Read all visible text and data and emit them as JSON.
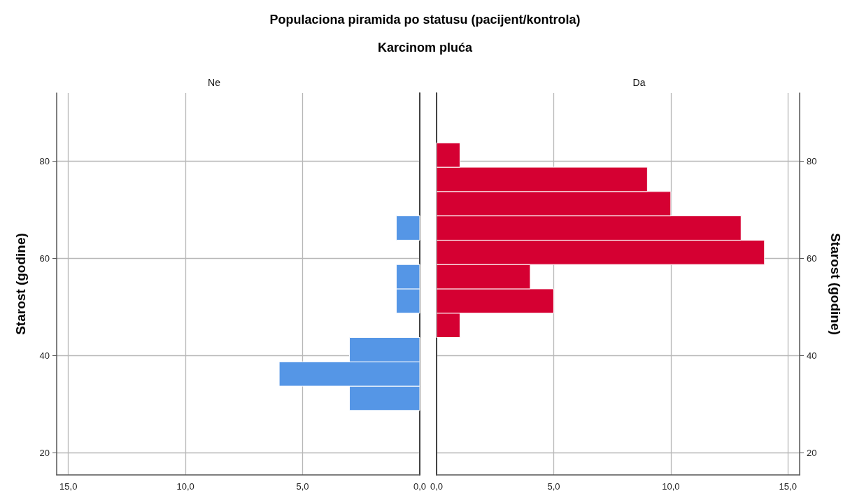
{
  "chart_data": [
    {
      "type": "other",
      "title": "Populaciona piramida po statusu (pacijent/kontrola)",
      "subtitle": "Karcinom pluća"
    },
    {
      "type": "histogram",
      "orientation": "horizontal",
      "title": "Ne",
      "color": "#5596e6",
      "bins": [
        28.75,
        33.75,
        38.75,
        43.75,
        48.75,
        53.75,
        58.75,
        63.75,
        68.75,
        73.75,
        78.75,
        83.75
      ],
      "values": [
        3,
        6,
        3,
        0,
        1,
        1,
        0,
        1,
        0,
        0,
        0
      ],
      "xlim": [
        15.5,
        0
      ],
      "xticks": [
        {
          "value": 15,
          "label": "15,0"
        },
        {
          "value": 10,
          "label": "10,0"
        },
        {
          "value": 5,
          "label": "5,0"
        },
        {
          "value": 0,
          "label": "0,0"
        }
      ],
      "ylim": [
        15.5,
        94
      ],
      "yticks": [
        20,
        40,
        60,
        80
      ],
      "ylabel": "Starost (godine)",
      "grid": true
    },
    {
      "type": "histogram",
      "orientation": "horizontal",
      "title": "Da",
      "color": "#d50032",
      "bins": [
        28.75,
        33.75,
        38.75,
        43.75,
        48.75,
        53.75,
        58.75,
        63.75,
        68.75,
        73.75,
        78.75,
        83.75
      ],
      "values": [
        0,
        0,
        0,
        1,
        5,
        4,
        14,
        13,
        10,
        9,
        1
      ],
      "xlim": [
        0,
        15.5
      ],
      "xticks": [
        {
          "value": 0,
          "label": "0,0"
        },
        {
          "value": 5,
          "label": "5,0"
        },
        {
          "value": 10,
          "label": "10,0"
        },
        {
          "value": 15,
          "label": "15,0"
        }
      ],
      "ylim": [
        15.5,
        94
      ],
      "yticks": [
        20,
        40,
        60,
        80
      ],
      "ylabel": "Starost (godine)",
      "grid": true
    }
  ]
}
